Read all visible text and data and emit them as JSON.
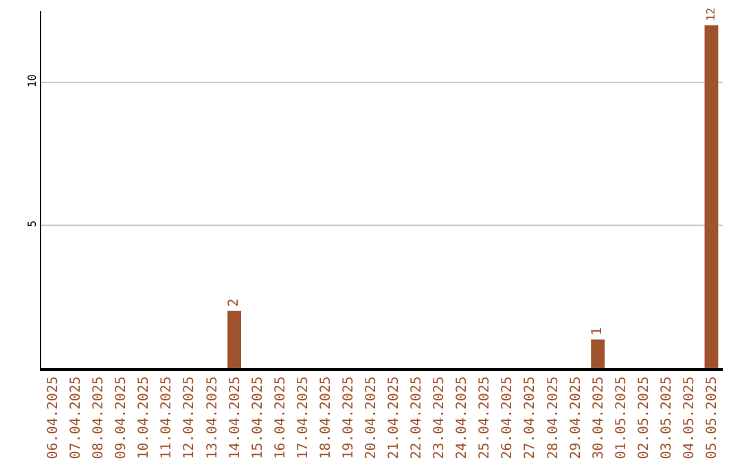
{
  "chart_data": {
    "type": "bar",
    "categories": [
      "06.04.2025",
      "07.04.2025",
      "08.04.2025",
      "09.04.2025",
      "10.04.2025",
      "11.04.2025",
      "12.04.2025",
      "13.04.2025",
      "14.04.2025",
      "15.04.2025",
      "16.04.2025",
      "17.04.2025",
      "18.04.2025",
      "19.04.2025",
      "20.04.2025",
      "21.04.2025",
      "22.04.2025",
      "23.04.2025",
      "24.04.2025",
      "25.04.2025",
      "26.04.2025",
      "27.04.2025",
      "28.04.2025",
      "29.04.2025",
      "30.04.2025",
      "01.05.2025",
      "02.05.2025",
      "03.05.2025",
      "04.05.2025",
      "05.05.2025"
    ],
    "values": [
      0,
      0,
      0,
      0,
      0,
      0,
      0,
      0,
      2,
      0,
      0,
      0,
      0,
      0,
      0,
      0,
      0,
      0,
      0,
      0,
      0,
      0,
      0,
      0,
      1,
      0,
      0,
      0,
      0,
      12
    ],
    "value_labels": [
      null,
      null,
      null,
      null,
      null,
      null,
      null,
      null,
      "2",
      null,
      null,
      null,
      null,
      null,
      null,
      null,
      null,
      null,
      null,
      null,
      null,
      null,
      null,
      null,
      "1",
      null,
      null,
      null,
      null,
      "12"
    ],
    "color": "#a0522d",
    "ylim": [
      0,
      12.5
    ],
    "yticks": [
      5,
      10
    ],
    "grid": "y",
    "legend": false
  }
}
